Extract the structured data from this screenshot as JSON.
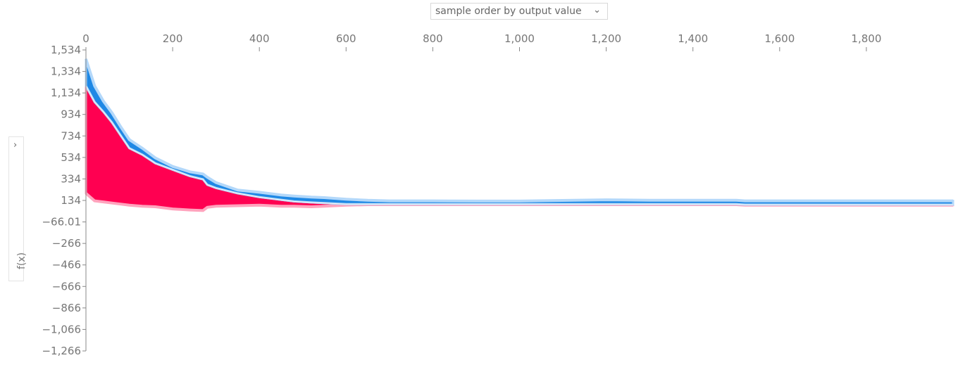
{
  "order_select": {
    "value": "sample order by output value",
    "icon": "chevron-down-icon"
  },
  "feature_panel": {
    "icon": "chevron-right-icon"
  },
  "chart_data": {
    "type": "area",
    "title": "",
    "xlabel": "",
    "ylabel": "f(x)",
    "xlim": [
      0,
      2000
    ],
    "ylim": [
      -1266,
      1534
    ],
    "grid": false,
    "legend": "none",
    "x_ticks": [
      "0",
      "200",
      "400",
      "600",
      "800",
      "1,000",
      "1,200",
      "1,400",
      "1,600",
      "1,800"
    ],
    "x_tick_values": [
      0,
      200,
      400,
      600,
      800,
      1000,
      1200,
      1400,
      1600,
      1800
    ],
    "y_ticks": [
      "1,534",
      "1,334",
      "1,134",
      "934",
      "734",
      "534",
      "334",
      "134",
      "−66.01",
      "−266",
      "−466",
      "−666",
      "−866",
      "−1,066",
      "−1,266"
    ],
    "y_tick_values": [
      1534,
      1334,
      1134,
      934,
      734,
      534,
      334,
      134,
      -66.01,
      -266,
      -466,
      -666,
      -866,
      -1066,
      -1266
    ],
    "colors": {
      "positive": "#ff0051",
      "positive_light": "#ffa3bd",
      "negative": "#1e88e5",
      "negative_light": "#b3d8fa",
      "output_line": "#f2f2f2"
    },
    "series": [
      {
        "sign": "positive",
        "x": [
          0,
          20,
          40,
          60,
          80,
          100,
          130,
          160,
          200,
          240,
          270,
          280,
          300,
          350,
          400,
          450,
          480,
          520,
          550,
          600,
          650,
          700,
          800,
          900,
          1000,
          1200,
          1300,
          1500,
          1520,
          1700,
          2000
        ],
        "lower": [
          200,
          130,
          120,
          110,
          100,
          90,
          80,
          75,
          55,
          45,
          40,
          70,
          80,
          85,
          90,
          80,
          80,
          75,
          80,
          90,
          95,
          95,
          95,
          95,
          95,
          95,
          95,
          95,
          90,
          90,
          90
        ],
        "upper": [
          1200,
          1050,
          960,
          860,
          740,
          620,
          560,
          480,
          420,
          360,
          330,
          280,
          250,
          200,
          165,
          140,
          125,
          115,
          110,
          100,
          100,
          100,
          100,
          100,
          100,
          100,
          100,
          100,
          95,
          95,
          95
        ]
      },
      {
        "sign": "negative",
        "x": [
          0,
          20,
          40,
          60,
          80,
          100,
          130,
          160,
          200,
          240,
          270,
          280,
          300,
          350,
          400,
          450,
          480,
          520,
          550,
          600,
          650,
          700,
          800,
          900,
          1000,
          1200,
          1300,
          1500,
          1520,
          1700,
          2000
        ],
        "lower": [
          1200,
          1050,
          960,
          860,
          740,
          620,
          560,
          480,
          420,
          360,
          330,
          280,
          250,
          200,
          165,
          140,
          125,
          115,
          110,
          100,
          100,
          100,
          100,
          100,
          100,
          100,
          100,
          100,
          95,
          95,
          95
        ],
        "upper": [
          1450,
          1200,
          1060,
          950,
          820,
          700,
          620,
          530,
          450,
          400,
          380,
          350,
          300,
          230,
          210,
          185,
          175,
          165,
          160,
          145,
          135,
          130,
          130,
          128,
          128,
          140,
          135,
          135,
          130,
          130,
          130
        ]
      }
    ]
  }
}
